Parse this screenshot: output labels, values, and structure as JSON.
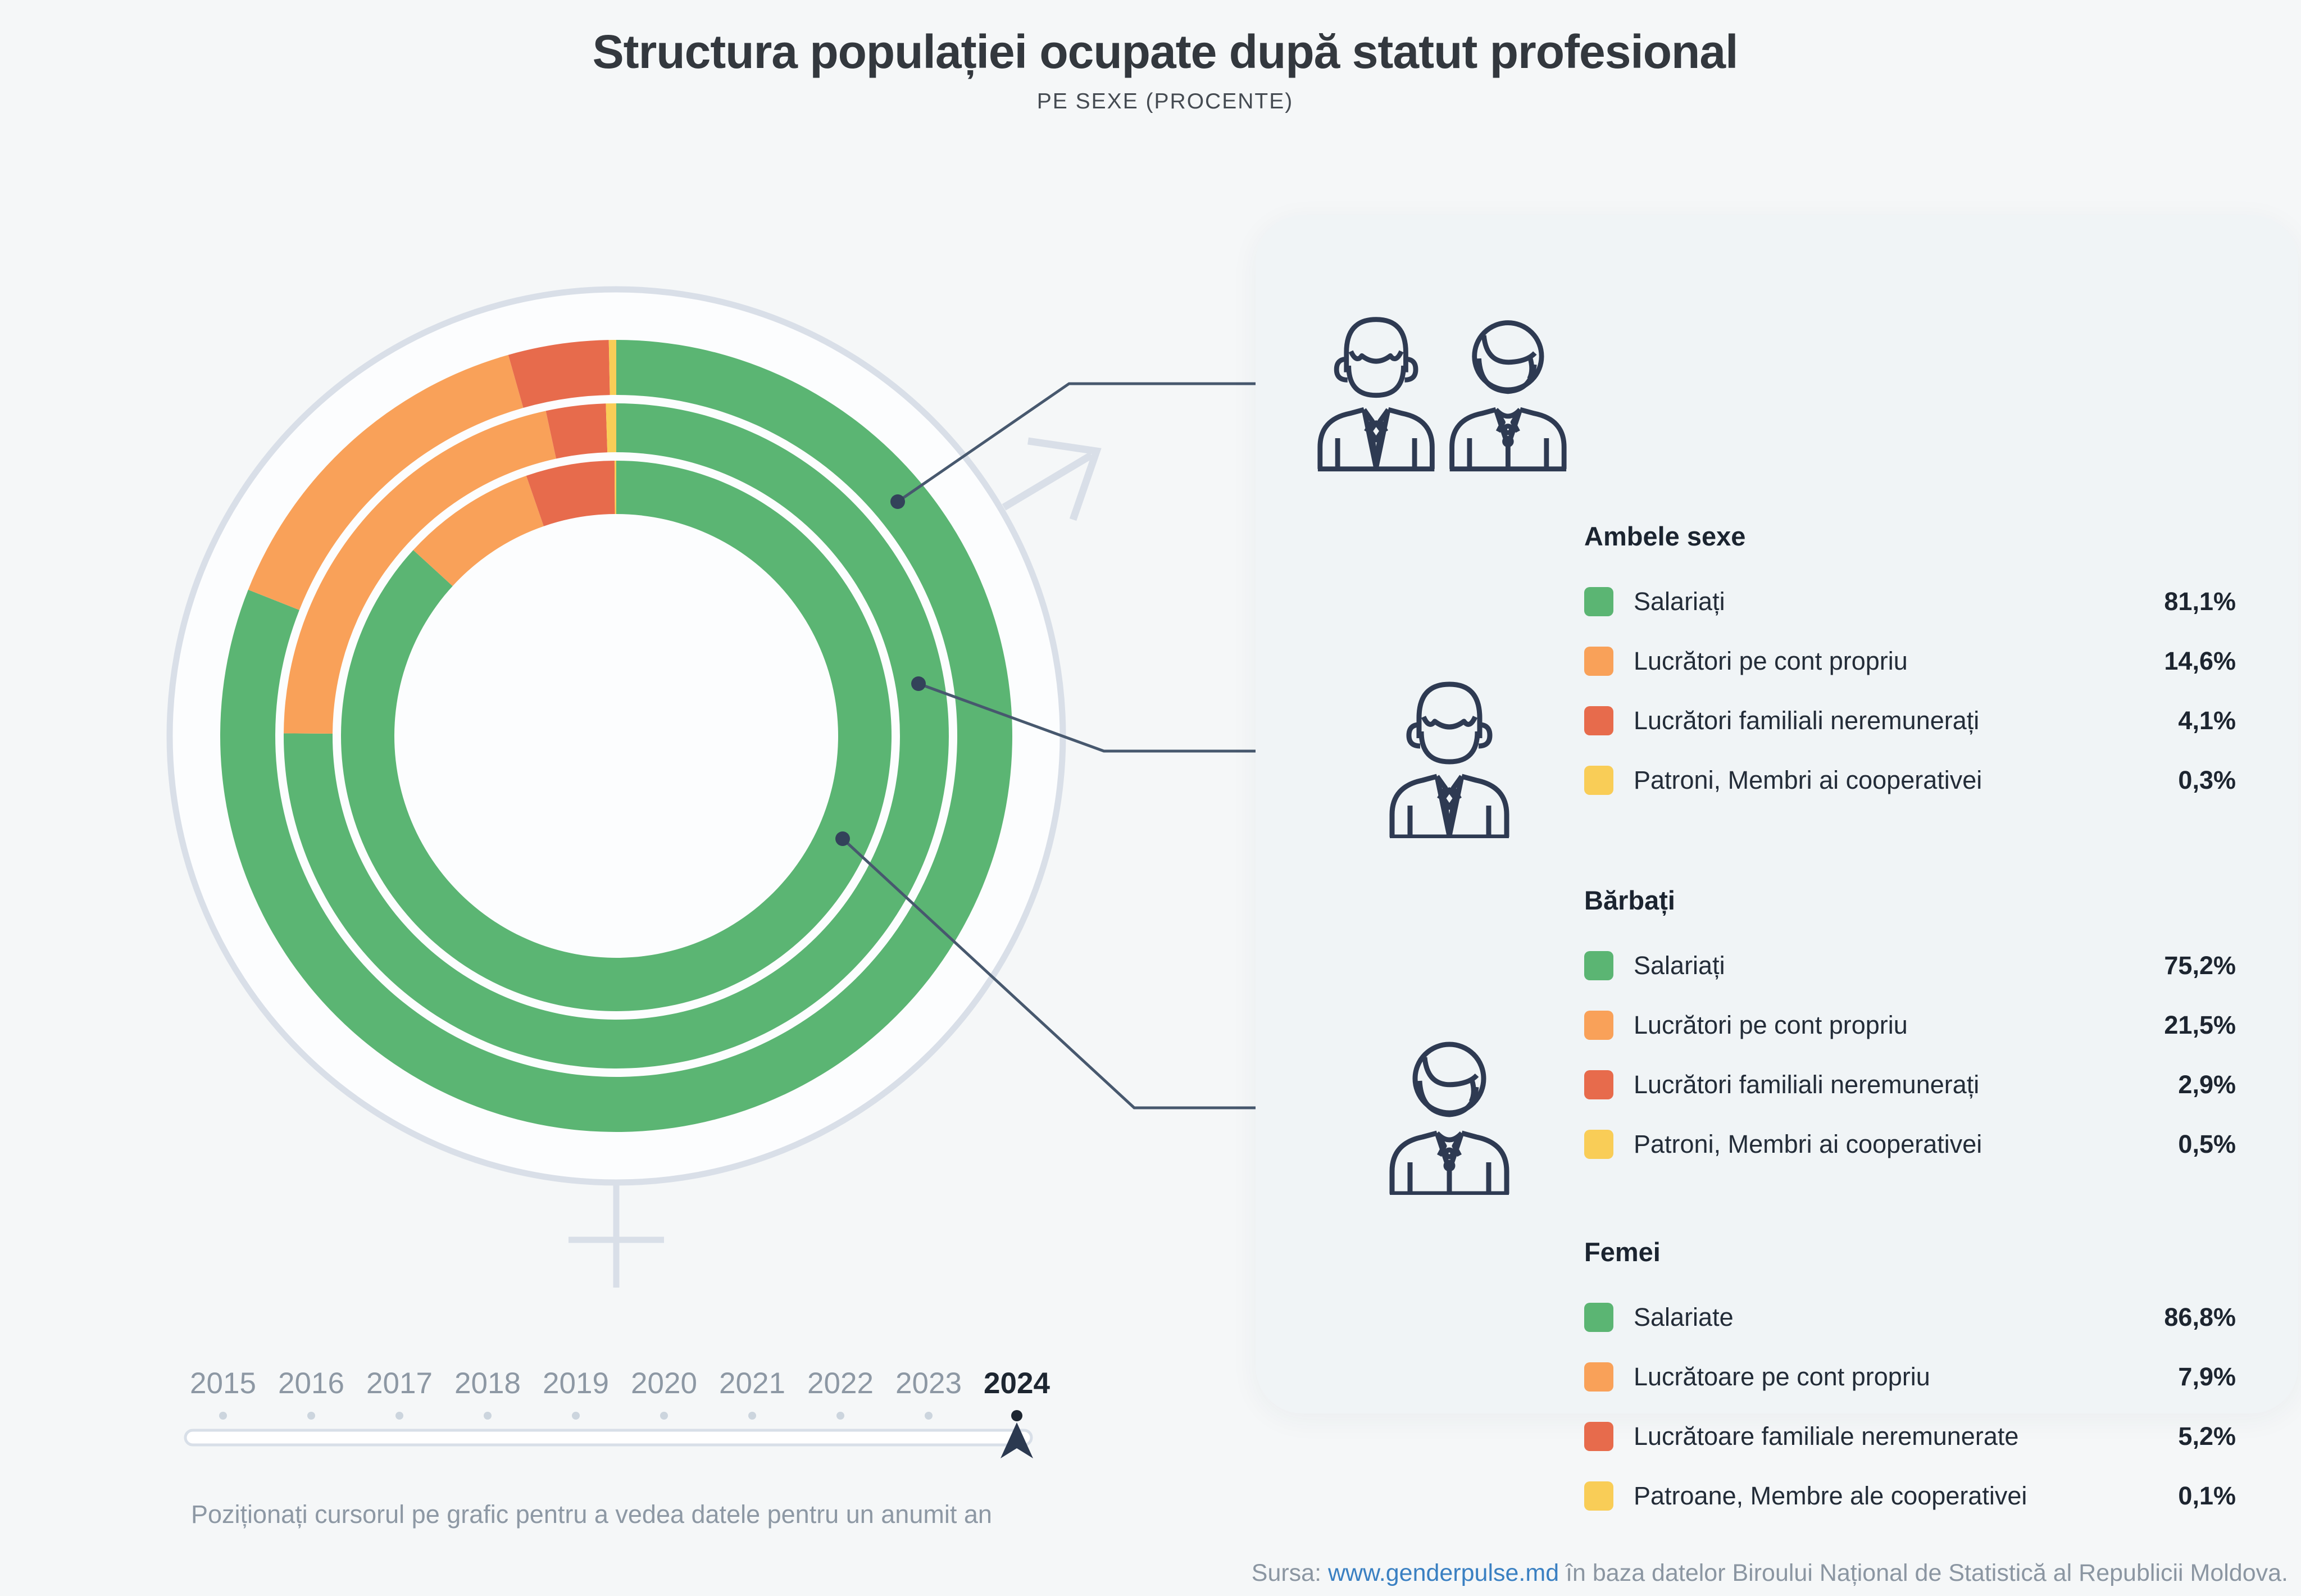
{
  "title": "Structura populației ocupate după statut profesional",
  "subtitle": "PE SEXE (PROCENTE)",
  "colors": {
    "salariati_green": "#5bb573",
    "cont_propriu_orange": "#f9a159",
    "familiali_red": "#e76b4c",
    "patroni_yellow": "#f9cd57",
    "icon_navy": "#2e3a52",
    "callout_line": "#47586e",
    "callout_dot": "#33425a",
    "gender_symbol_gray": "#d9dfe8",
    "link_blue": "#3a80c2",
    "muted_text": "#8d98a4",
    "selected_year": "#1d2631"
  },
  "chart_data": {
    "type": "donut",
    "subtype": "three concentric rings, outer to inner",
    "start": "top",
    "direction": "clockwise",
    "unit": "%",
    "year_shown": 2024,
    "categories": [
      "Salariați",
      "Lucrători pe cont propriu",
      "Lucrători familiali neremunerați",
      "Patroni, Membri ai cooperativei"
    ],
    "colors": [
      "#5bb573",
      "#f9a159",
      "#e76b4c",
      "#f9cd57"
    ],
    "series": [
      {
        "name": "Ambele sexe",
        "ring": "outer",
        "labels": [
          "Salariați",
          "Lucrători pe cont propriu",
          "Lucrători familiali neremunerați",
          "Patroni, Membri ai cooperativei"
        ],
        "values": [
          81.1,
          14.6,
          4.1,
          0.3
        ],
        "display": [
          "81,1%",
          "14,6%",
          "4,1%",
          "0,3%"
        ]
      },
      {
        "name": "Bărbați",
        "ring": "middle",
        "labels": [
          "Salariați",
          "Lucrători pe cont propriu",
          "Lucrători familiali neremunerați",
          "Patroni, Membri ai cooperativei"
        ],
        "values": [
          75.2,
          21.5,
          2.9,
          0.5
        ],
        "display": [
          "75,2%",
          "21,5%",
          "2,9%",
          "0,5%"
        ]
      },
      {
        "name": "Femei",
        "ring": "inner",
        "labels": [
          "Salariate",
          "Lucrătoare pe cont propriu",
          "Lucrătoare familiale neremunerate",
          "Patroane, Membre ale cooperativei"
        ],
        "values": [
          86.8,
          7.9,
          5.2,
          0.1
        ],
        "display": [
          "86,8%",
          "7,9%",
          "5,2%",
          "0,1%"
        ]
      }
    ]
  },
  "timeline": {
    "years": [
      2015,
      2016,
      2017,
      2018,
      2019,
      2020,
      2021,
      2022,
      2023,
      2024
    ],
    "selected": 2024,
    "hint": "Poziționați cursorul pe grafic pentru a vedea datele pentru un anumit an"
  },
  "source": {
    "label": "Sursa:",
    "link": "www.genderpulse.md",
    "text": "în baza datelor Biroului Național de Statistică al Republicii Moldova."
  }
}
